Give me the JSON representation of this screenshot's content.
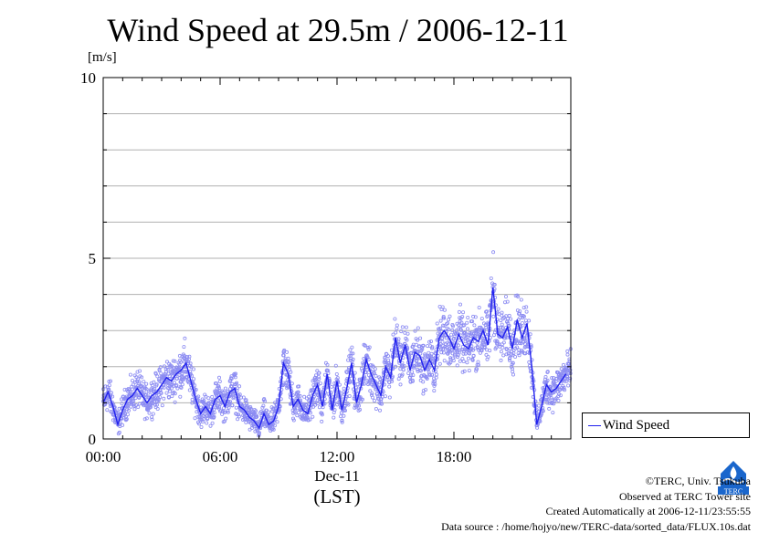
{
  "chart_data": {
    "type": "scatter",
    "title": "Wind Speed at 29.5m / 2006-12-11",
    "ylabel": "[m/s]",
    "xlabel_date": "Dec-11",
    "xlabel_tz": "(LST)",
    "ylim": [
      0,
      10
    ],
    "xlim_hours": [
      0,
      24
    ],
    "y_ticks": [
      "0",
      "5",
      "10"
    ],
    "x_ticks": [
      "00:00",
      "06:00",
      "12:00",
      "18:00"
    ],
    "grid": true,
    "legend_position": "right-bottom",
    "colors": {
      "line": "#2222ee",
      "points": "#8c8cf2",
      "grid": "#b0b0b0"
    },
    "series": [
      {
        "name": "Wind Speed",
        "hours": [
          0.0,
          0.25,
          0.5,
          0.75,
          1.0,
          1.25,
          1.5,
          1.75,
          2.0,
          2.25,
          2.5,
          2.75,
          3.0,
          3.25,
          3.5,
          3.75,
          4.0,
          4.25,
          4.5,
          4.75,
          5.0,
          5.25,
          5.5,
          5.75,
          6.0,
          6.25,
          6.5,
          6.75,
          7.0,
          7.25,
          7.5,
          7.75,
          8.0,
          8.25,
          8.5,
          8.75,
          9.0,
          9.25,
          9.5,
          9.75,
          10.0,
          10.25,
          10.5,
          10.75,
          11.0,
          11.25,
          11.5,
          11.75,
          12.0,
          12.25,
          12.5,
          12.75,
          13.0,
          13.25,
          13.5,
          13.75,
          14.0,
          14.25,
          14.5,
          14.75,
          15.0,
          15.25,
          15.5,
          15.75,
          16.0,
          16.25,
          16.5,
          16.75,
          17.0,
          17.25,
          17.5,
          17.75,
          18.0,
          18.25,
          18.5,
          18.75,
          19.0,
          19.25,
          19.5,
          19.75,
          20.0,
          20.25,
          20.5,
          20.75,
          21.0,
          21.25,
          21.5,
          21.75,
          22.0,
          22.25,
          22.5,
          22.75,
          23.0,
          23.25,
          23.5,
          23.75
        ],
        "values": [
          1.0,
          1.3,
          0.9,
          0.4,
          0.8,
          1.1,
          1.2,
          1.4,
          1.2,
          1.0,
          1.2,
          1.3,
          1.5,
          1.7,
          1.6,
          1.8,
          1.9,
          2.1,
          1.6,
          1.1,
          0.7,
          0.9,
          0.7,
          1.1,
          1.2,
          0.9,
          1.3,
          1.4,
          0.9,
          0.8,
          0.6,
          0.5,
          0.3,
          0.7,
          0.4,
          0.5,
          0.9,
          2.1,
          1.8,
          0.9,
          1.1,
          0.8,
          0.7,
          1.2,
          1.5,
          0.9,
          1.8,
          0.8,
          1.6,
          0.8,
          1.4,
          2.1,
          1.0,
          1.5,
          2.2,
          1.8,
          1.5,
          1.2,
          2.0,
          1.7,
          2.8,
          2.1,
          2.6,
          1.9,
          2.4,
          2.3,
          1.9,
          2.2,
          1.9,
          2.8,
          3.0,
          2.8,
          2.5,
          2.9,
          2.6,
          2.5,
          2.8,
          2.7,
          3.0,
          2.6,
          4.2,
          2.9,
          2.8,
          3.1,
          2.5,
          3.3,
          2.8,
          3.2,
          2.0,
          0.4,
          0.9,
          1.5,
          1.3,
          1.4,
          1.6,
          1.8
        ]
      }
    ]
  },
  "legend": {
    "label": "Wind Speed"
  },
  "footer": {
    "credit": "©TERC, Univ. Tsukuba",
    "observed": "Observed at TERC Tower site",
    "created": "Created Automatically at 2006-12-11/23:55:55",
    "source": "Data source : /home/hojyo/new/TERC-data/sorted_data/FLUX.10s.dat"
  },
  "logo": {
    "icon": "terc-logo-icon",
    "text": "TERC",
    "color": "#1a66cc"
  }
}
